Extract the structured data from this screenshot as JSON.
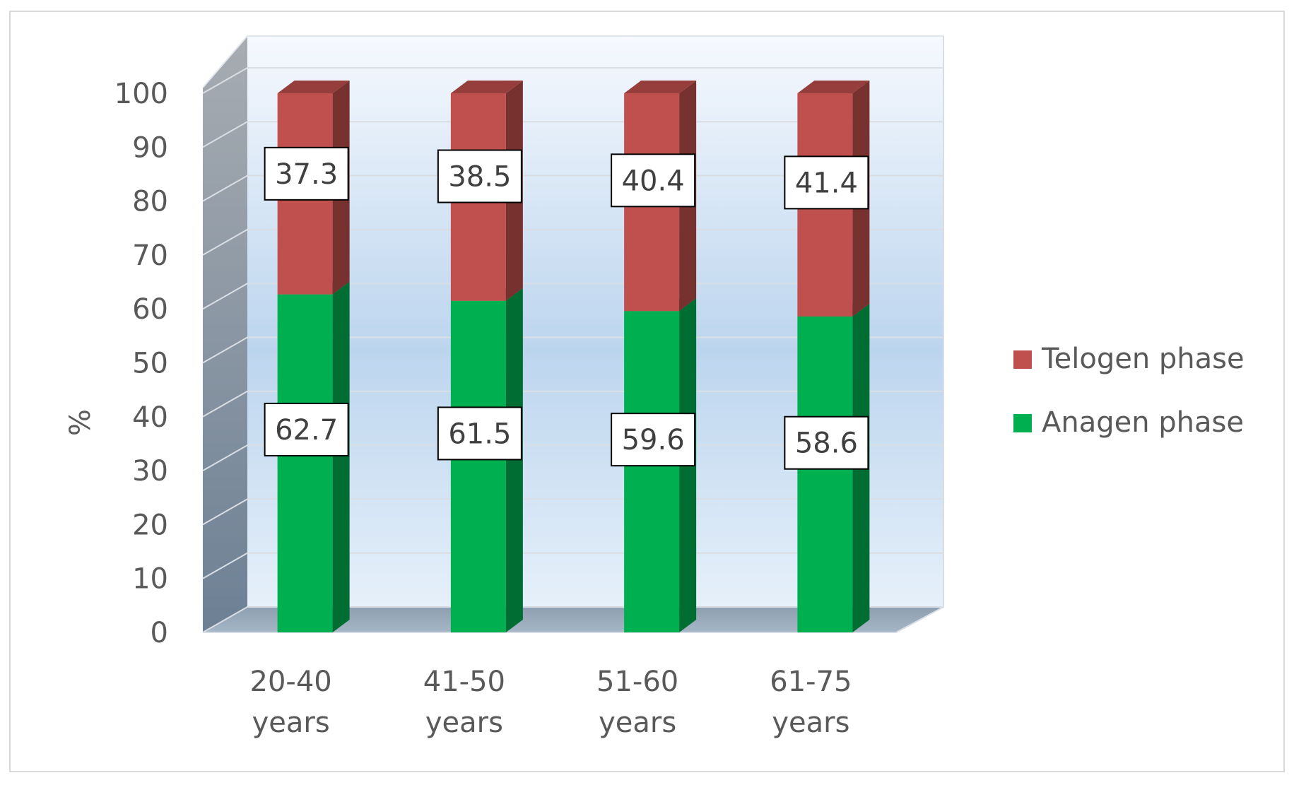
{
  "chart_data": {
    "type": "bar",
    "stacked": true,
    "three_d": true,
    "title": "",
    "xlabel": "",
    "ylabel": "%",
    "ylim": [
      0,
      100
    ],
    "yticks": [
      0,
      10,
      20,
      30,
      40,
      50,
      60,
      70,
      80,
      90,
      100
    ],
    "grid": true,
    "legend_position": "right",
    "categories": [
      [
        "20-40",
        "years"
      ],
      [
        "41-50",
        "years"
      ],
      [
        "51-60",
        "years"
      ],
      [
        "61-75",
        "years"
      ]
    ],
    "series": [
      {
        "name": "Anagen phase",
        "color": "#00b050",
        "values": [
          62.7,
          61.5,
          59.6,
          58.6
        ]
      },
      {
        "name": "Telogen phase",
        "color": "#c0504d",
        "values": [
          37.3,
          38.5,
          40.4,
          41.4
        ]
      }
    ],
    "data_labels": {
      "Anagen phase": [
        "62.7",
        "61.5",
        "59.6",
        "58.6"
      ],
      "Telogen phase": [
        "37.3",
        "38.5",
        "40.4",
        "41.4"
      ]
    },
    "legend": [
      {
        "label": "Telogen phase",
        "color": "#c0504d"
      },
      {
        "label": "Anagen phase",
        "color": "#00b050"
      }
    ]
  }
}
